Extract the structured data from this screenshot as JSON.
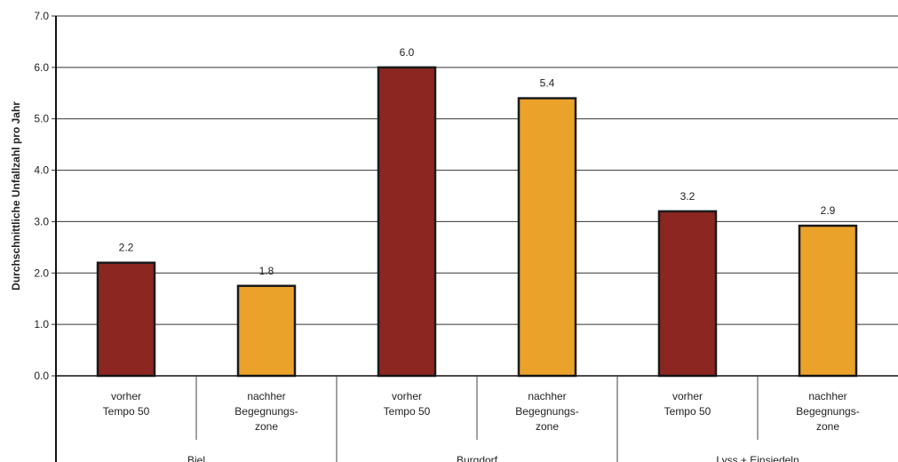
{
  "chart_data": {
    "type": "bar",
    "ylabel": "Durchschnittliche Unfallzahl pro Jahr",
    "ylim": [
      0,
      7
    ],
    "yticks": [
      "0.0",
      "1.0",
      "2.0",
      "3.0",
      "4.0",
      "5.0",
      "6.0",
      "7.0"
    ],
    "grid": true,
    "groups": [
      {
        "name": "Biel",
        "bars": [
          {
            "category": [
              "vorher",
              "Tempo 50"
            ],
            "value": 2.2,
            "label": "2.2",
            "color": "#8b2621"
          },
          {
            "category": [
              "nachher",
              "Begegnungs-",
              "zone"
            ],
            "value": 1.75,
            "label": "1.8",
            "color": "#eba22a"
          }
        ]
      },
      {
        "name": "Burgdorf",
        "bars": [
          {
            "category": [
              "vorher",
              "Tempo 50"
            ],
            "value": 6.0,
            "label": "6.0",
            "color": "#8b2621"
          },
          {
            "category": [
              "nachher",
              "Begegnungs-",
              "zone"
            ],
            "value": 5.4,
            "label": "5.4",
            "color": "#eba22a"
          }
        ]
      },
      {
        "name": "Lyss + Einsiedeln",
        "bars": [
          {
            "category": [
              "vorher",
              "Tempo 50"
            ],
            "value": 3.2,
            "label": "3.2",
            "color": "#8b2621"
          },
          {
            "category": [
              "nachher",
              "Begegnungs-",
              "zone"
            ],
            "value": 2.92,
            "label": "2.9",
            "color": "#eba22a"
          }
        ]
      }
    ]
  }
}
